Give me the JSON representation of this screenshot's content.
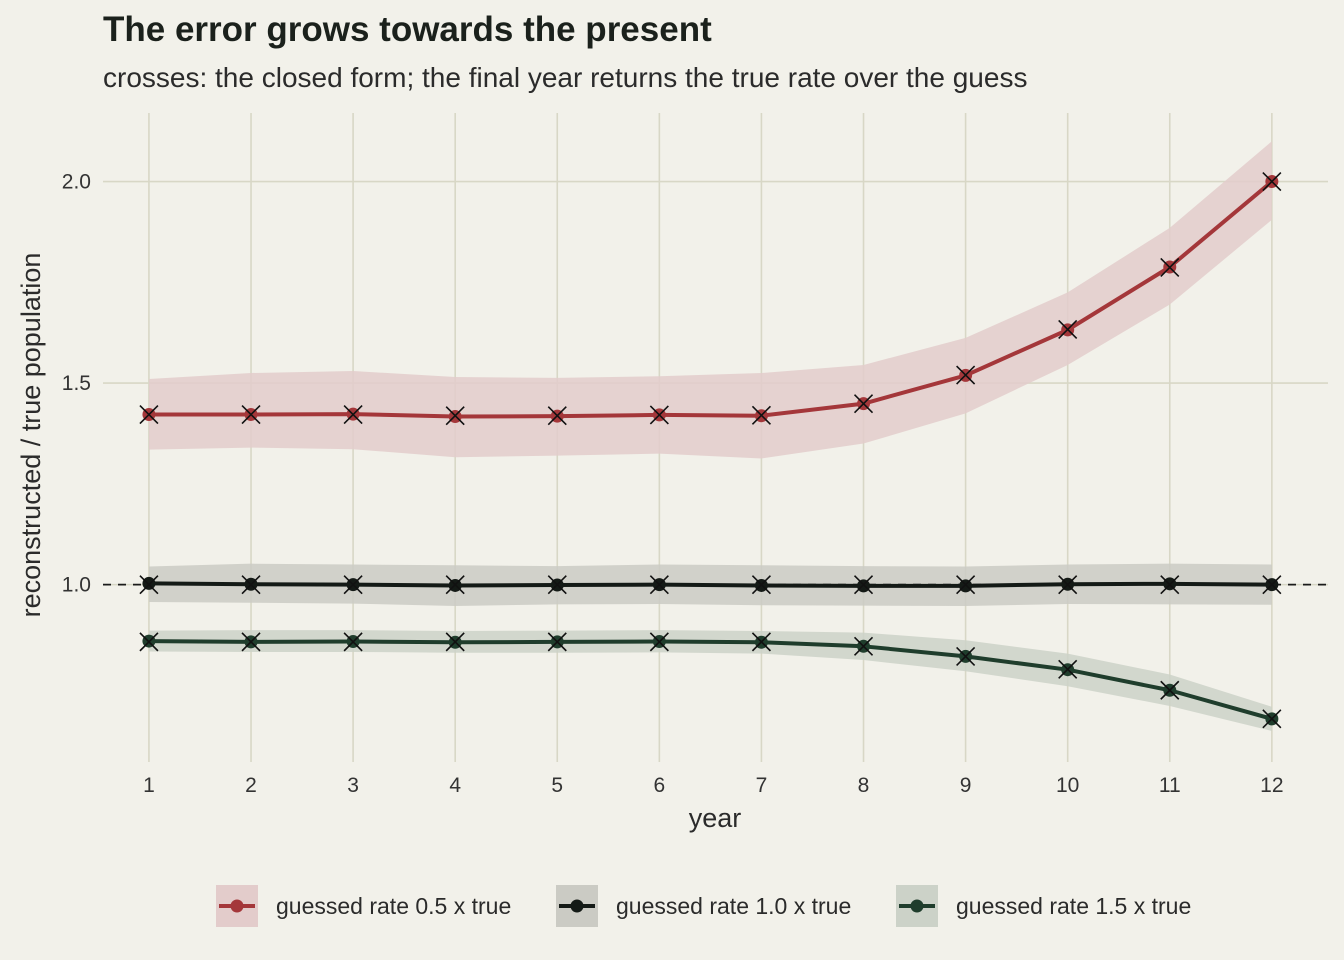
{
  "chart_data": {
    "type": "line",
    "title": "The error grows towards the present",
    "subtitle": "crosses: the closed form; the final year returns the true rate over the guess",
    "xlabel": "year",
    "ylabel": "reconstructed / true population",
    "x": [
      1,
      2,
      3,
      4,
      5,
      6,
      7,
      8,
      9,
      10,
      11,
      12
    ],
    "xlim": [
      0.55,
      12.55
    ],
    "ylim": [
      0.56,
      2.17
    ],
    "yticks": [
      1.0,
      1.5,
      2.0
    ],
    "ytick_labels": [
      "1.0",
      "1.5",
      "2.0"
    ],
    "reference_line": 1.0,
    "grid": true,
    "legend_position": "bottom",
    "series": [
      {
        "name": "guessed rate 0.5 x true",
        "color": "#a4373a",
        "band_color": "#e3cccb",
        "values": [
          1.422,
          1.422,
          1.423,
          1.417,
          1.418,
          1.421,
          1.419,
          1.449,
          1.519,
          1.632,
          1.788,
          2.0
        ],
        "lower": [
          1.335,
          1.34,
          1.336,
          1.316,
          1.32,
          1.325,
          1.313,
          1.35,
          1.425,
          1.545,
          1.695,
          1.905
        ],
        "upper": [
          1.51,
          1.525,
          1.53,
          1.515,
          1.513,
          1.517,
          1.525,
          1.545,
          1.612,
          1.725,
          1.885,
          2.1
        ],
        "closed_form": [
          1.422,
          1.422,
          1.422,
          1.419,
          1.419,
          1.421,
          1.42,
          1.449,
          1.52,
          1.633,
          1.787,
          2.0
        ]
      },
      {
        "name": "guessed rate 1.0 x true",
        "color": "#141a16",
        "band_color": "#cbcbc4",
        "values": [
          1.003,
          1.001,
          1.0,
          0.998,
          0.999,
          1.0,
          0.998,
          0.997,
          0.997,
          1.001,
          1.002,
          1.0
        ],
        "lower": [
          0.957,
          0.955,
          0.953,
          0.947,
          0.951,
          0.952,
          0.949,
          0.948,
          0.947,
          0.952,
          0.951,
          0.95
        ],
        "upper": [
          1.045,
          1.052,
          1.05,
          1.048,
          1.046,
          1.05,
          1.048,
          1.046,
          1.045,
          1.05,
          1.052,
          1.05
        ],
        "closed_form": [
          1.0,
          1.0,
          1.0,
          1.0,
          1.0,
          1.0,
          1.0,
          1.0,
          1.0,
          1.0,
          1.0,
          1.0
        ]
      },
      {
        "name": "guessed rate 1.5 x true",
        "color": "#1f3d2c",
        "band_color": "#ccd2c8",
        "values": [
          0.86,
          0.858,
          0.859,
          0.857,
          0.858,
          0.859,
          0.857,
          0.847,
          0.822,
          0.789,
          0.738,
          0.667
        ],
        "lower": [
          0.834,
          0.833,
          0.833,
          0.831,
          0.831,
          0.832,
          0.829,
          0.813,
          0.785,
          0.748,
          0.699,
          0.637
        ],
        "upper": [
          0.886,
          0.887,
          0.887,
          0.885,
          0.886,
          0.887,
          0.885,
          0.881,
          0.862,
          0.829,
          0.777,
          0.697
        ],
        "closed_form": [
          0.858,
          0.858,
          0.858,
          0.858,
          0.858,
          0.858,
          0.858,
          0.847,
          0.822,
          0.79,
          0.738,
          0.667
        ]
      }
    ]
  }
}
